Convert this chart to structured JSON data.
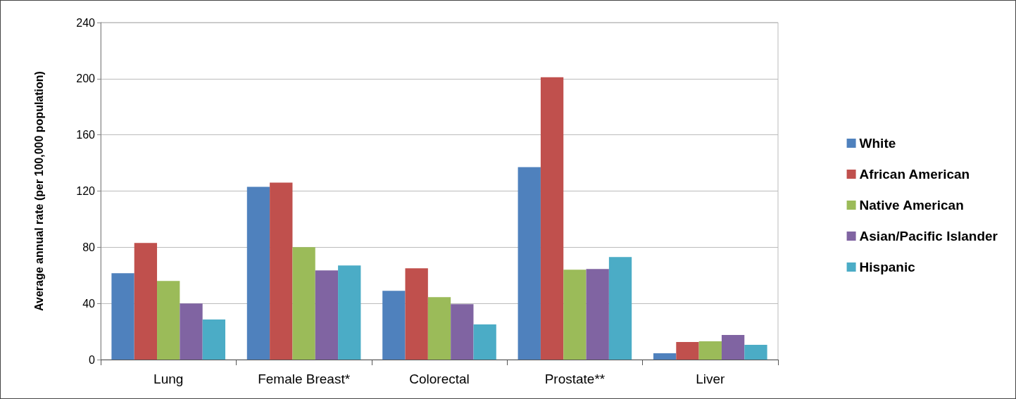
{
  "chart_data": {
    "type": "bar",
    "ylabel": "Average annual rate (per 100,000 population)",
    "categories": [
      "Lung",
      "Female Breast*",
      "Colorectal",
      "Prostate**",
      "Liver"
    ],
    "series": [
      {
        "name": "White",
        "color": "#4f81bd",
        "values": [
          61.5,
          123,
          49,
          137,
          4.5
        ]
      },
      {
        "name": "African American",
        "color": "#c0504d",
        "values": [
          83,
          126,
          65,
          201,
          12.5
        ]
      },
      {
        "name": "Native American",
        "color": "#9bbb59",
        "values": [
          56,
          80,
          44.5,
          64,
          13
        ]
      },
      {
        "name": "Asian/Pacific Islander",
        "color": "#8064a2",
        "values": [
          40,
          63.5,
          39.5,
          64.5,
          17.5
        ]
      },
      {
        "name": "Hispanic",
        "color": "#4bacc6",
        "values": [
          28.5,
          67,
          25,
          73,
          10.5
        ]
      }
    ],
    "ylim": [
      0,
      240
    ],
    "yticks": [
      0,
      40,
      80,
      120,
      160,
      200,
      240
    ],
    "grid": "y",
    "legend": "right"
  }
}
